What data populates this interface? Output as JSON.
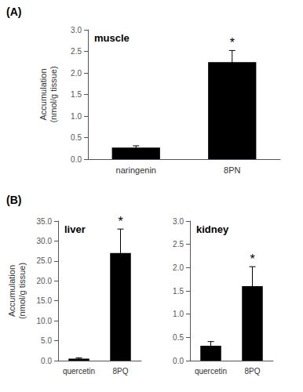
{
  "chart_data": [
    {
      "type": "bar",
      "title": "muscle",
      "categories": [
        "naringenin",
        "8PN"
      ],
      "values": [
        0.27,
        2.25
      ],
      "errors": [
        0.04,
        0.27
      ],
      "color": "#000000",
      "ylabel": "Accumulation\n(nmol/g tissue)",
      "ylim": [
        0,
        3.0
      ],
      "yticks": [
        {
          "value": 0.0,
          "label": "0.0"
        },
        0.5,
        {
          "value": 1.0,
          "label": "1.0"
        },
        1.5,
        {
          "value": 2.0,
          "label": "2.0"
        },
        2.5,
        {
          "value": 3.0,
          "label": "3.0"
        }
      ],
      "grid": false,
      "annotations": [
        {
          "text": "(A)"
        },
        {
          "category": "8PN",
          "text": "*"
        }
      ]
    },
    {
      "type": "bar",
      "title": "liver",
      "categories": [
        "quercetin",
        "8PQ"
      ],
      "values": [
        0.5,
        27.0
      ],
      "errors": [
        0.2,
        6.0
      ],
      "color": "#000000",
      "ylabel": "Accumulation\n(nmol/g tissue)",
      "ylim": [
        0,
        35.0
      ],
      "yticks": [
        {
          "value": 0.0,
          "label": "0.0"
        },
        {
          "value": 5.0,
          "label": "5.0"
        },
        {
          "value": 10.0,
          "label": "10.0"
        },
        {
          "value": 15.0,
          "label": "15.0"
        },
        {
          "value": 20.0,
          "label": "20.0"
        },
        {
          "value": 25.0,
          "label": "25.0"
        },
        {
          "value": 30.0,
          "label": "30.0"
        },
        {
          "value": 35.0,
          "label": "35.0"
        }
      ],
      "grid": false,
      "annotations": [
        {
          "text": "(B)"
        },
        {
          "category": "8PQ",
          "text": "*"
        }
      ]
    },
    {
      "type": "bar",
      "title": "kidney",
      "categories": [
        "quercetin",
        "8PQ"
      ],
      "values": [
        0.32,
        1.6
      ],
      "errors": [
        0.09,
        0.42
      ],
      "color": "#000000",
      "ylim": [
        0,
        3.0
      ],
      "yticks": [
        {
          "value": 0.0,
          "label": "0.0"
        },
        0.5,
        {
          "value": 1.0,
          "label": "1.0"
        },
        1.5,
        {
          "value": 2.0,
          "label": "2.0"
        },
        2.5,
        {
          "value": 3.0,
          "label": "3.0"
        }
      ],
      "grid": false,
      "annotations": [
        {
          "category": "8PQ",
          "text": "*"
        }
      ]
    }
  ]
}
